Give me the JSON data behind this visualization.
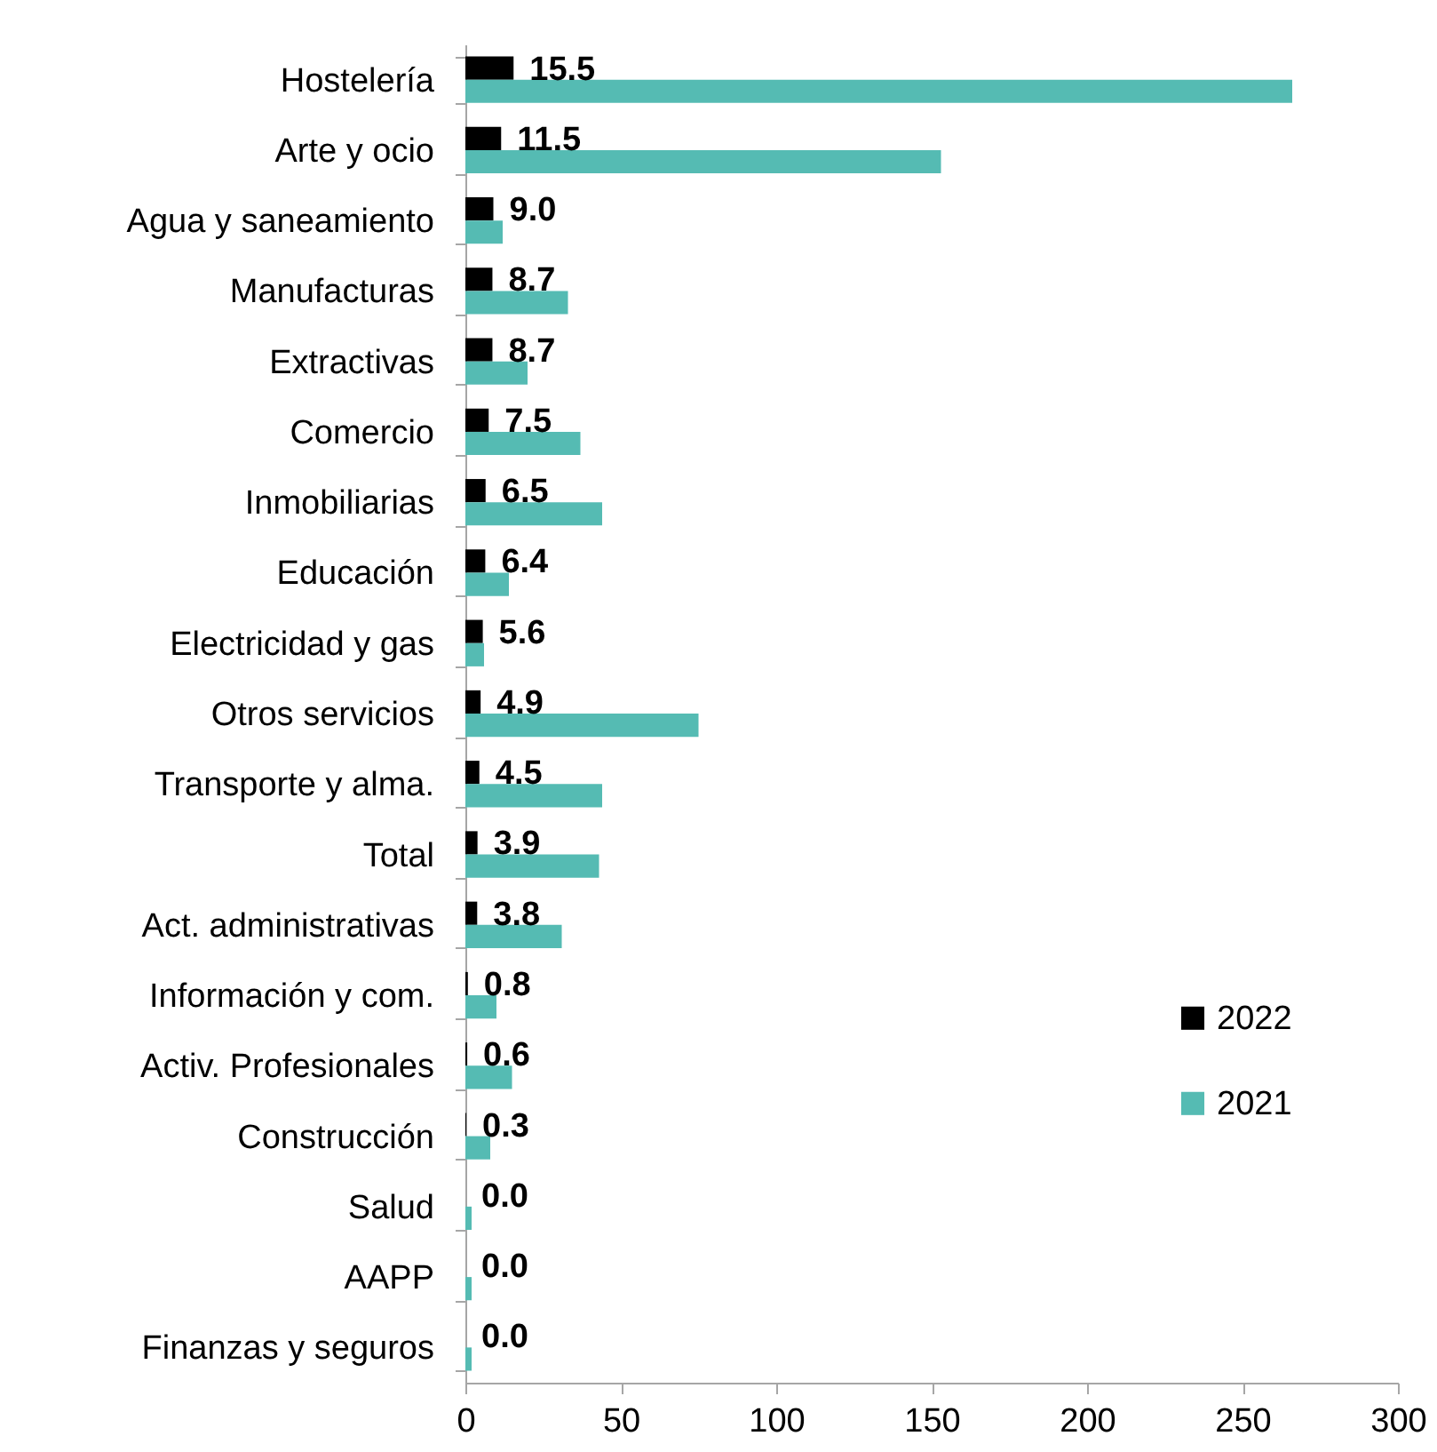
{
  "chart_data": {
    "type": "bar",
    "orientation": "horizontal",
    "categories": [
      "Hostelería",
      "Arte y ocio",
      "Agua y saneamiento",
      "Manufacturas",
      "Extractivas",
      "Comercio",
      "Inmobiliarias",
      "Educación",
      "Electricidad y gas",
      "Otros servicios",
      "Transporte y alma.",
      "Total",
      "Act. administrativas",
      "Información y com.",
      "Activ. Profesionales",
      "Construcción",
      "Salud ",
      "AAPP",
      "Finanzas y seguros"
    ],
    "series": [
      {
        "name": "2022",
        "color": "#000000",
        "values": [
          15.5,
          11.5,
          9.0,
          8.7,
          8.7,
          7.5,
          6.5,
          6.4,
          5.6,
          4.9,
          4.5,
          3.9,
          3.8,
          0.8,
          0.6,
          0.3,
          0.0,
          0.0,
          0.0
        ],
        "value_labels": [
          "15.5",
          "11.5",
          "9.0",
          "8.7",
          "8.7",
          "7.5",
          "6.5",
          "6.4",
          "5.6",
          "4.9",
          "4.5",
          "3.9",
          "3.8",
          "0.8",
          "0.6",
          "0.3",
          "0.0",
          "0.0",
          "0.0"
        ]
      },
      {
        "name": "2021",
        "color": "#55bbb3",
        "values": [
          266,
          153,
          12,
          33,
          20,
          37,
          44,
          14,
          6,
          75,
          44,
          43,
          31,
          10,
          15,
          8,
          2,
          2,
          2
        ]
      }
    ],
    "xlim": [
      0,
      300
    ],
    "xticks": [
      0,
      50,
      100,
      150,
      200,
      250,
      300
    ],
    "legend": "bottom right"
  }
}
